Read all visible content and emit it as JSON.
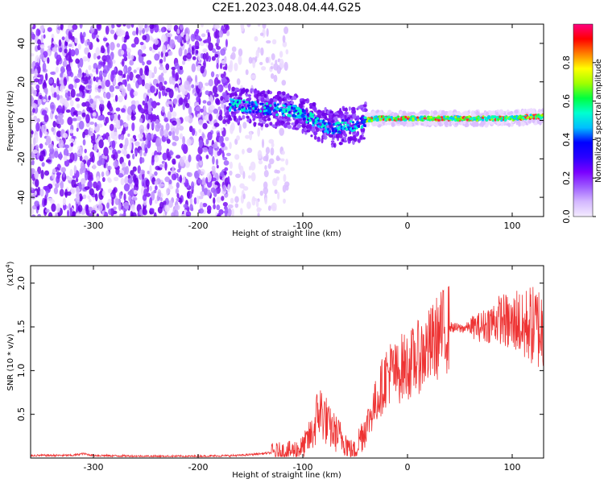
{
  "title": "C2E1.2023.048.04.44.G25",
  "chart_data": [
    {
      "type": "heatmap",
      "xlabel": "Height of straight line (km)",
      "ylabel": "Frequency (Hz)",
      "xlim": [
        -360,
        130
      ],
      "ylim": [
        -50,
        50
      ],
      "xticks": [
        -300,
        -200,
        -100,
        0,
        100
      ],
      "yticks": [
        -40,
        -20,
        0,
        20,
        40
      ],
      "colorbar": {
        "label": "Normalized spectral amplitude",
        "range": [
          0.0,
          1.0
        ],
        "ticks": [
          "0.0",
          "0.2",
          "0.4",
          "0.6",
          "0.8"
        ],
        "colormap": [
          "#f4ecff",
          "#d4b8ff",
          "#9e5cff",
          "#7a00ff",
          "#2a00ff",
          "#0000ff",
          "#00bfff",
          "#00ffd0",
          "#00ff40",
          "#a0ff00",
          "#ffff00",
          "#ff8000",
          "#ff0000",
          "#ff0080"
        ]
      },
      "ridge": {
        "x": [
          -170,
          -150,
          -130,
          -110,
          -100,
          -90,
          -80,
          -70,
          -60,
          -50,
          -40,
          -30,
          -20,
          -10,
          0,
          20,
          40,
          60,
          80,
          100,
          120,
          130
        ],
        "y": [
          8,
          7,
          6,
          5,
          3,
          0,
          -3,
          -5,
          -2,
          -3,
          0,
          1,
          1,
          1,
          1,
          1,
          1,
          1,
          1,
          1,
          2,
          2
        ]
      },
      "grid": false
    },
    {
      "type": "line",
      "xlabel": "Height of straight line (km)",
      "ylabel": "SNR (10 * v/v)",
      "y_scale_label": "(x10",
      "y_scale_exp": "4",
      "xlim": [
        -360,
        130
      ],
      "ylim": [
        0,
        2.2
      ],
      "xticks": [
        -300,
        -200,
        -100,
        0,
        100
      ],
      "yticks": [
        0.5,
        1.0,
        1.5,
        2.0
      ],
      "yticklabels": [
        "0.5",
        "1.0",
        "1.5",
        "2.0"
      ],
      "series": [
        {
          "color": "#ee3333",
          "x": [
            -360,
            -320,
            -310,
            -300,
            -250,
            -200,
            -160,
            -130,
            -110,
            -100,
            -90,
            -85,
            -80,
            -75,
            -70,
            -60,
            -55,
            -50,
            -45,
            -40,
            -35,
            -30,
            -25,
            -20,
            -15,
            -10,
            -5,
            0,
            10,
            20,
            30,
            40,
            50,
            60,
            70,
            80,
            90,
            95,
            100,
            105,
            110,
            115,
            120,
            125,
            130
          ],
          "y": [
            0.03,
            0.03,
            0.05,
            0.03,
            0.02,
            0.02,
            0.03,
            0.06,
            0.08,
            0.12,
            0.3,
            0.55,
            0.5,
            0.35,
            0.3,
            0.2,
            0.1,
            0.08,
            0.25,
            0.35,
            0.5,
            0.65,
            0.8,
            0.95,
            1.0,
            0.95,
            1.05,
            1.05,
            1.15,
            1.25,
            1.4,
            1.5,
            1.48,
            1.5,
            1.5,
            1.55,
            1.6,
            1.55,
            1.5,
            1.6,
            1.45,
            1.55,
            1.5,
            1.5,
            1.45
          ]
        }
      ],
      "grid": false
    }
  ]
}
